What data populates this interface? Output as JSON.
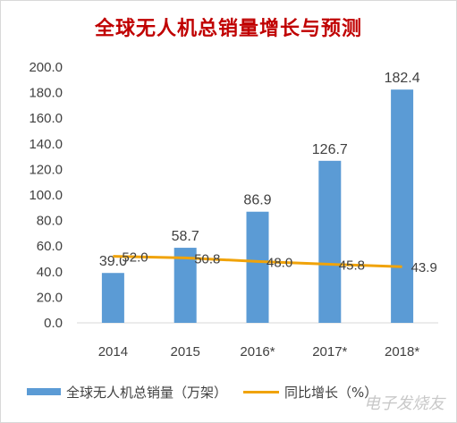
{
  "chart_data": {
    "type": "bar",
    "title": "全球无人机总销量增长与预测",
    "categories": [
      "2014",
      "2015",
      "2016*",
      "2017*",
      "2018*"
    ],
    "series": [
      {
        "name": "全球无人机总销量（万架）",
        "kind": "bar",
        "color": "#5b9bd5",
        "values": [
          39.0,
          58.7,
          86.9,
          126.7,
          182.4
        ],
        "labels": [
          "39.0",
          "58.7",
          "86.9",
          "126.7",
          "182.4"
        ]
      },
      {
        "name": "同比增长（%）",
        "kind": "line",
        "color": "#f0a30a",
        "values": [
          52.0,
          50.8,
          48.0,
          45.8,
          43.9
        ],
        "labels": [
          "52.0",
          "50.8",
          "48.0",
          "45.8",
          "43.9"
        ]
      }
    ],
    "yticks": [
      "0.0",
      "20.0",
      "40.0",
      "60.0",
      "80.0",
      "100.0",
      "120.0",
      "140.0",
      "160.0",
      "180.0",
      "200.0"
    ],
    "ylim": [
      0,
      200
    ],
    "grid": false,
    "legend_position": "bottom"
  },
  "watermark": "电子发烧友"
}
